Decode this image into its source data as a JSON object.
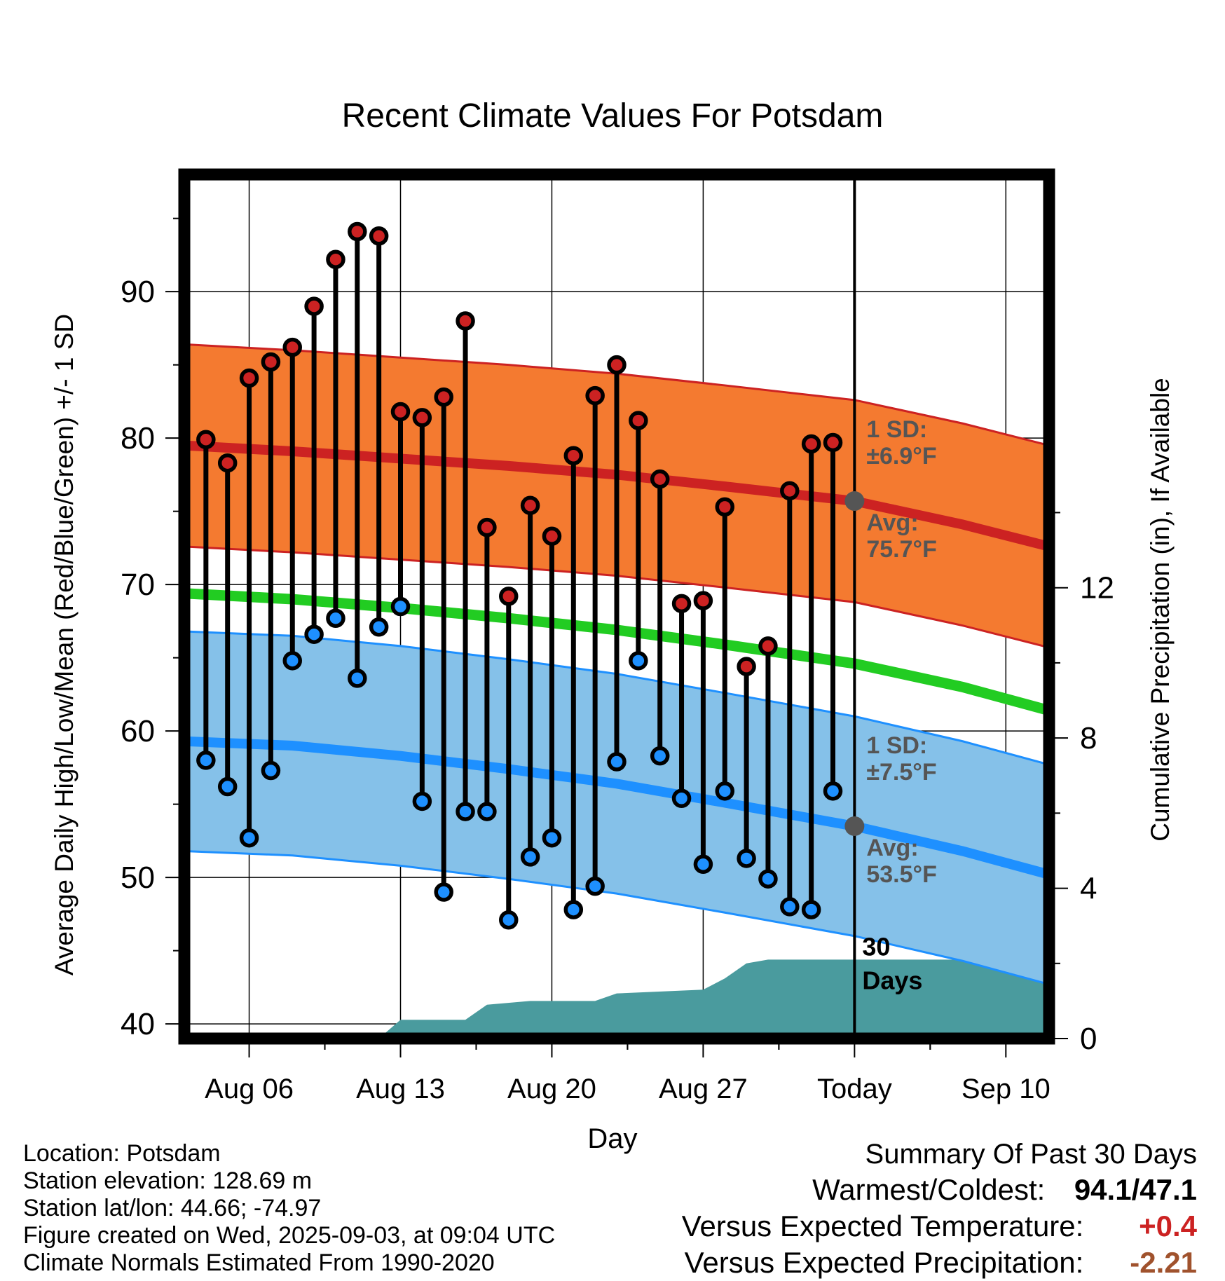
{
  "title": "Recent Climate Values For Potsdam",
  "y_left_label": "Average Daily High/Low/Mean (Red/Blue/Green) +/- 1 SD",
  "y_right_label": "Cumulative Precipitation (in), If Available",
  "x_label": "Day",
  "today_label": "Today",
  "days_label": [
    "30",
    "Days"
  ],
  "high_band_label": {
    "sd_title": "1 SD:",
    "sd_value": "±6.9°F",
    "avg_title": "Avg:",
    "avg_value": "75.7°F"
  },
  "low_band_label": {
    "sd_title": "1 SD:",
    "sd_value": "±7.5°F",
    "avg_title": "Avg:",
    "avg_value": "53.5°F"
  },
  "info": {
    "location": "Location: Potsdam",
    "elevation": "Station elevation: 128.69 m",
    "latlon": "Station lat/lon: 44.66; -74.97",
    "created": "Figure created on Wed, 2025-09-03, at 09:04 UTC",
    "normals": "Climate Normals Estimated From 1990-2020"
  },
  "summary": {
    "title": "Summary Of Past 30 Days",
    "warm_cold_label": "Warmest/Coldest:",
    "warm_cold_value": "94.1/47.1",
    "temp_label": "Versus Expected Temperature:",
    "temp_value": "+0.4",
    "precip_label": "Versus Expected Precipitation:",
    "precip_value": "-2.21"
  },
  "colors": {
    "high": "#cc2222",
    "high_band": "#f47a30",
    "low": "#1e90ff",
    "low_band": "#85c1e9",
    "mean": "#22cc22",
    "precip": "#4a9b9e",
    "annotation": "#555555",
    "temp_anomaly": "#cc2222",
    "precip_anomaly": "#a0522d"
  },
  "chart_data": {
    "type": "line",
    "title": "Recent Climate Values For Potsdam",
    "xlabel": "Day",
    "ylabel": "Average Daily High/Low/Mean (Red/Blue/Green) +/- 1 SD",
    "y2label": "Cumulative Precipitation (in), If Available",
    "x_range": [
      "2025-08-03",
      "2025-09-12"
    ],
    "ylim": [
      39,
      98
    ],
    "y2lim": [
      0,
      23
    ],
    "y_ticks": [
      40,
      50,
      60,
      70,
      80,
      90
    ],
    "y2_ticks": [
      0,
      4,
      8,
      12
    ],
    "x_ticks": [
      {
        "date": "2025-08-06",
        "label": "Aug 06"
      },
      {
        "date": "2025-08-13",
        "label": "Aug 13"
      },
      {
        "date": "2025-08-20",
        "label": "Aug 20"
      },
      {
        "date": "2025-08-27",
        "label": "Aug 27"
      },
      {
        "date": "2025-09-03",
        "label": "Today"
      },
      {
        "date": "2025-09-10",
        "label": "Sep 10"
      }
    ],
    "today": "2025-09-03",
    "daily_observations": {
      "dates": [
        "2025-08-04",
        "2025-08-05",
        "2025-08-06",
        "2025-08-07",
        "2025-08-08",
        "2025-08-09",
        "2025-08-10",
        "2025-08-11",
        "2025-08-12",
        "2025-08-13",
        "2025-08-14",
        "2025-08-15",
        "2025-08-16",
        "2025-08-17",
        "2025-08-18",
        "2025-08-19",
        "2025-08-20",
        "2025-08-21",
        "2025-08-22",
        "2025-08-23",
        "2025-08-24",
        "2025-08-25",
        "2025-08-26",
        "2025-08-27",
        "2025-08-28",
        "2025-08-29",
        "2025-08-30",
        "2025-08-31",
        "2025-09-01",
        "2025-09-02"
      ],
      "highs": [
        79.9,
        78.3,
        84.1,
        85.2,
        86.2,
        89.0,
        92.2,
        94.1,
        93.8,
        81.8,
        81.4,
        82.8,
        88.0,
        73.9,
        69.2,
        75.4,
        73.3,
        78.8,
        82.9,
        85.0,
        81.2,
        77.2,
        68.7,
        68.9,
        75.3,
        64.4,
        65.8,
        76.4,
        79.6,
        79.7
      ],
      "lows": [
        58.0,
        56.2,
        52.7,
        57.3,
        64.8,
        66.6,
        67.7,
        63.6,
        67.1,
        68.5,
        55.2,
        49.0,
        54.5,
        54.5,
        47.1,
        51.4,
        52.7,
        47.8,
        49.4,
        57.9,
        64.8,
        58.3,
        55.4,
        50.9,
        55.9,
        51.3,
        49.9,
        48.0,
        47.8,
        55.9
      ]
    },
    "normals": {
      "dates": [
        "2025-08-03",
        "2025-08-08",
        "2025-08-13",
        "2025-08-18",
        "2025-08-23",
        "2025-08-28",
        "2025-09-03",
        "2025-09-08",
        "2025-09-12"
      ],
      "high_mean": [
        79.5,
        79.1,
        78.6,
        78.1,
        77.5,
        76.7,
        75.7,
        74.1,
        72.6
      ],
      "high_sd": 6.9,
      "low_mean": [
        59.3,
        59.0,
        58.3,
        57.4,
        56.4,
        55.1,
        53.5,
        51.8,
        50.2
      ],
      "low_sd": 7.5,
      "daily_mean": [
        69.4,
        69.0,
        68.4,
        67.7,
        66.9,
        65.9,
        64.6,
        63.0,
        61.4
      ]
    },
    "cumulative_precip": {
      "dates": [
        "2025-08-03",
        "2025-08-12",
        "2025-08-13",
        "2025-08-16",
        "2025-08-17",
        "2025-08-19",
        "2025-08-22",
        "2025-08-23",
        "2025-08-27",
        "2025-08-28",
        "2025-08-29",
        "2025-08-30",
        "2025-09-02",
        "2025-09-12"
      ],
      "values": [
        0,
        0,
        0.5,
        0.5,
        0.9,
        1.0,
        1.0,
        1.2,
        1.3,
        1.6,
        2.0,
        2.1,
        2.1,
        2.1
      ]
    }
  }
}
